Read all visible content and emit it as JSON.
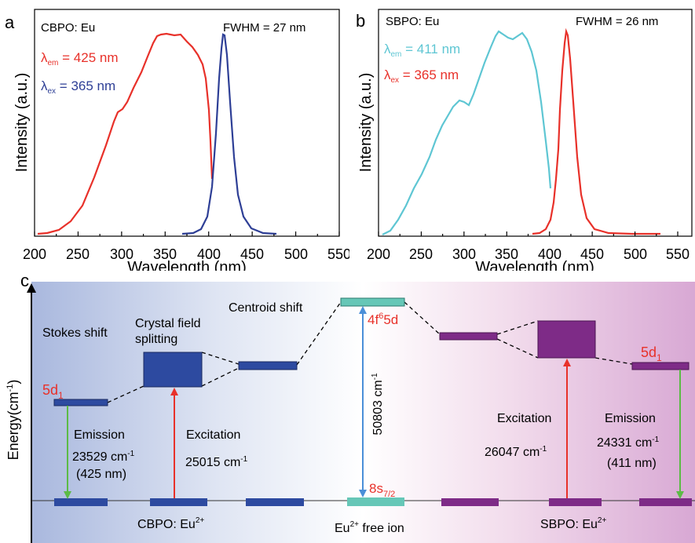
{
  "panel_a": {
    "letter": "a",
    "sample": "CBPO: Eu",
    "fwhm": "FWHM = 27 nm",
    "lambda_em": "425 nm",
    "lambda_ex": "365 nm",
    "sub_em": "em",
    "sub_ex": "ex",
    "lambda_symbol": "λ",
    "equals": " = ",
    "xlabel": "Wavelength (nm)",
    "ylabel": "Intensity (a.u.)",
    "xticks": [
      "200",
      "250",
      "300",
      "350",
      "400",
      "450",
      "500",
      "550"
    ]
  },
  "panel_b": {
    "letter": "b",
    "sample": "SBPO: Eu",
    "fwhm": "FWHM = 26 nm",
    "lambda_em": "411 nm",
    "lambda_ex": "365 nm",
    "sub_em": "em",
    "sub_ex": "ex",
    "lambda_symbol": "λ",
    "equals": " = ",
    "xlabel": "Wavelength (nm)",
    "ylabel": "Intensity (a.u.)",
    "xticks": [
      "200",
      "250",
      "300",
      "350",
      "400",
      "450",
      "500",
      "550"
    ]
  },
  "panel_c": {
    "letter": "c",
    "yaxis_label": "Energy(cm",
    "yaxis_sup": "-1",
    "yaxis_close": ")",
    "stokes_shift": "Stokes shift",
    "crystal_field_1": "Crystal field",
    "crystal_field_2": "splitting",
    "centroid_shift": "Centroid shift",
    "level_5d": "5d",
    "level_5d_sub": "1",
    "level_4f_main": "4f",
    "level_4f_sup": "6",
    "level_4f_tail": "5d",
    "level_8s_main": "8s",
    "level_8s_sub": "7/2",
    "gap_value": "50803 cm",
    "gap_sup": "-1",
    "left_emission_label": "Emission",
    "left_emission_value": "23529 cm",
    "left_emission_sup": "-1",
    "left_emission_nm": "(425 nm)",
    "left_excitation_label": "Excitation",
    "left_excitation_value": "25015 cm",
    "left_excitation_sup": "-1",
    "right_excitation_label": "Excitation",
    "right_excitation_value": "26047 cm",
    "right_excitation_sup": "-1",
    "right_emission_label": "Emission",
    "right_emission_value": "24331 cm",
    "right_emission_sup": "-1",
    "right_emission_nm": "(411 nm)",
    "bottom_cbpo": "CBPO: Eu",
    "bottom_free": "Eu",
    "bottom_free_tail": " free ion",
    "bottom_sbpo": "SBPO: Eu",
    "charge": "2+"
  },
  "colors": {
    "red": "#e8312a",
    "blue": "#2e3f96",
    "cyan": "#5ec6d3",
    "level_blue": "#2d4aa0",
    "level_purple": "#7e2b87",
    "level_teal": "#66c7b7",
    "green": "#5cbb46",
    "gap_arrow": "#4a8fd8"
  }
}
